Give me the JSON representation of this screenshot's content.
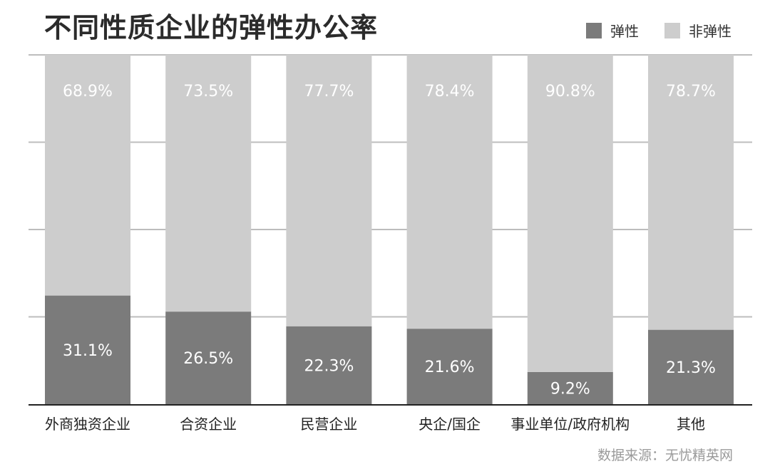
{
  "title": "不同性质企业的弹性办公率",
  "source": "数据来源：无忧精英网",
  "colors": {
    "flexible": "#7b7b7b",
    "non_flexible": "#cdcdcd",
    "grid": "#bdbdbd",
    "axis": "#222222"
  },
  "chart_data": {
    "type": "bar",
    "stacked": true,
    "title": "不同性质企业的弹性办公率",
    "categories": [
      "外商独资企业",
      "合资企业",
      "民营企业",
      "央企/国企",
      "事业单位/政府机构",
      "其他"
    ],
    "series": [
      {
        "name": "弹性",
        "values": [
          31.1,
          26.5,
          22.3,
          21.6,
          9.2,
          21.3
        ],
        "labels": [
          "31.1%",
          "26.5%",
          "22.3%",
          "21.6%",
          "9.2%",
          "21.3%"
        ]
      },
      {
        "name": "非弹性",
        "values": [
          68.9,
          73.5,
          77.7,
          78.4,
          90.8,
          78.7
        ],
        "labels": [
          "68.9%",
          "73.5%",
          "77.7%",
          "78.4%",
          "90.8%",
          "78.7%"
        ]
      }
    ],
    "ylim": [
      0,
      100
    ],
    "grid": true,
    "legend_position": "top-right"
  }
}
